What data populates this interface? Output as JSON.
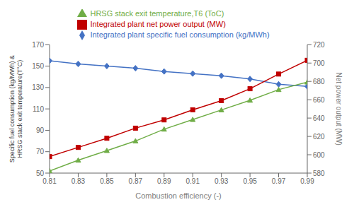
{
  "chart_data": {
    "type": "line",
    "x": [
      0.81,
      0.83,
      0.85,
      0.87,
      0.89,
      0.91,
      0.93,
      0.95,
      0.97,
      0.99
    ],
    "series": [
      {
        "name": "Integrated plant specific fuel consumption (kg/MWh)",
        "color": "#4472C4",
        "marker": "diamond",
        "axis": "y",
        "values": [
          155,
          152,
          150,
          148,
          145,
          143,
          141,
          138,
          133,
          131
        ]
      },
      {
        "name": "HRSG stack exit temperature,T6 (ToC)",
        "color": "#70AD47",
        "marker": "triangle",
        "axis": "y",
        "values": [
          52,
          62,
          71,
          80,
          91,
          100,
          109,
          118,
          128,
          135
        ]
      },
      {
        "name": "Integrated  plant net power output (MW)",
        "color": "#C00000",
        "marker": "square",
        "axis": "y2",
        "values": [
          598,
          608,
          618,
          629,
          638,
          649,
          659,
          672,
          688,
          703
        ]
      }
    ],
    "xlabel": "Combustion efficiency (-)",
    "ylabel": "Specific fuel consumption (kg/MWh) &\nHRSG stack exit temperature(T°C)",
    "y2label": "Net power output (MW)",
    "xlim": [
      0.81,
      0.99
    ],
    "xticks": [
      0.81,
      0.83,
      0.85,
      0.87,
      0.89,
      0.91,
      0.93,
      0.95,
      0.97,
      0.99
    ],
    "ylim": [
      50,
      170
    ],
    "yticks": [
      50,
      70,
      90,
      110,
      130,
      150,
      170
    ],
    "y2lim": [
      580,
      720
    ],
    "y2ticks": [
      580,
      600,
      620,
      640,
      660,
      680,
      700,
      720
    ],
    "legend": "top",
    "grid": false
  }
}
